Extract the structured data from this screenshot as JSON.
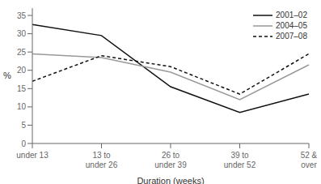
{
  "chart_data": {
    "type": "line",
    "categories": [
      "under 13",
      "13 to\nunder 26",
      "26 to\nunder 39",
      "39 to\nunder 52",
      "52 &\nover"
    ],
    "series": [
      {
        "name": "2001–02",
        "color": "#111111",
        "line_style": "solid",
        "values": [
          32.5,
          29.5,
          15.5,
          8.5,
          13.5
        ]
      },
      {
        "name": "2004–05",
        "color": "#999999",
        "line_style": "solid",
        "values": [
          24.5,
          23.5,
          19.5,
          12.0,
          21.5
        ]
      },
      {
        "name": "2007–08",
        "color": "#111111",
        "line_style": "dashed",
        "values": [
          17.0,
          24.0,
          21.0,
          13.5,
          24.5
        ]
      }
    ],
    "xlabel": "Duration (weeks)",
    "ylabel": "%",
    "ylim": [
      0,
      37
    ],
    "yticks": [
      0,
      5,
      10,
      15,
      20,
      25,
      30,
      35
    ],
    "legend": "upper right",
    "grid": false
  }
}
